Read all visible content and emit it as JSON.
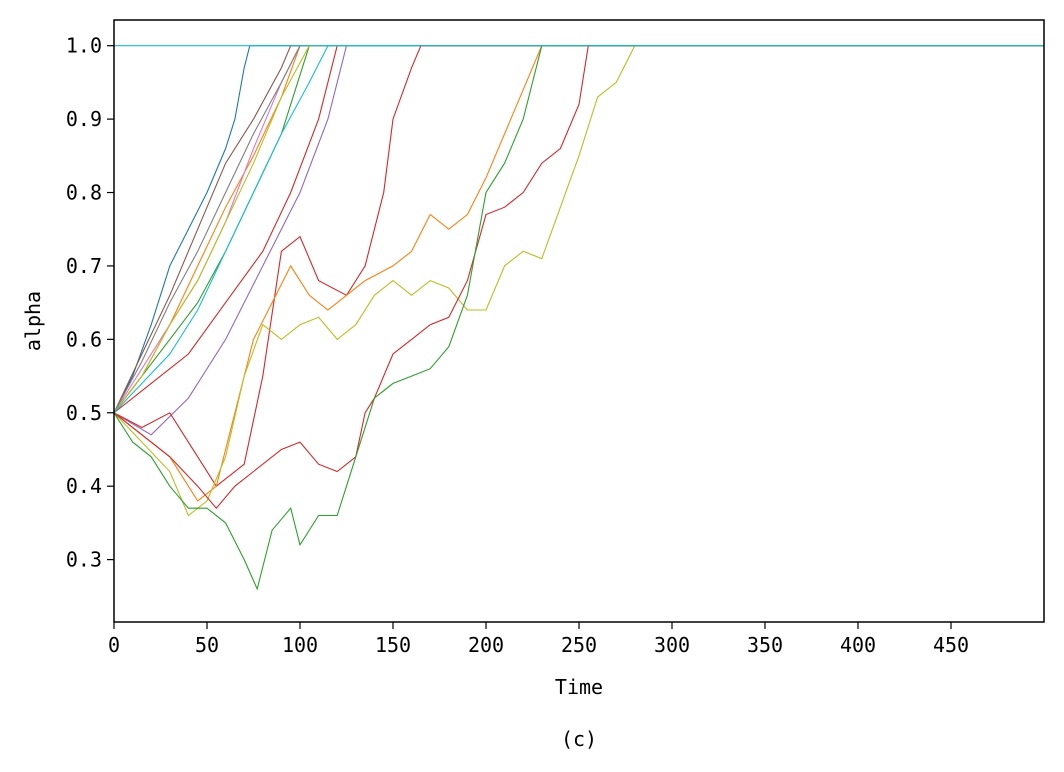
{
  "chart_data": {
    "type": "line",
    "title": "",
    "xlabel": "Time",
    "ylabel": "alpha",
    "caption": "(c)",
    "xlim": [
      0,
      500
    ],
    "ylim": [
      0.215,
      1.035
    ],
    "x_ticks": [
      0,
      50,
      100,
      150,
      200,
      250,
      300,
      350,
      400,
      450
    ],
    "x_tick_labels": [
      "0",
      "50",
      "100",
      "150",
      "200",
      "250",
      "300",
      "350",
      "400",
      "450"
    ],
    "y_ticks": [
      0.3,
      0.4,
      0.5,
      0.6,
      0.7,
      0.8,
      0.9,
      1.0
    ],
    "y_tick_labels": [
      "0.3",
      "0.4",
      "0.5",
      "0.6",
      "0.7",
      "0.8",
      "0.9",
      "1.0"
    ],
    "grid": false,
    "legend": "none",
    "series": [
      {
        "color": "#1f77b4",
        "points": [
          [
            0,
            0.5
          ],
          [
            10,
            0.55
          ],
          [
            20,
            0.62
          ],
          [
            30,
            0.7
          ],
          [
            40,
            0.75
          ],
          [
            50,
            0.8
          ],
          [
            60,
            0.86
          ],
          [
            65,
            0.9
          ],
          [
            70,
            0.97
          ],
          [
            73,
            1.0
          ],
          [
            500,
            1.0
          ]
        ]
      },
      {
        "color": "#ff7f0e",
        "points": [
          [
            0,
            0.5
          ],
          [
            15,
            0.55
          ],
          [
            30,
            0.62
          ],
          [
            45,
            0.7
          ],
          [
            60,
            0.78
          ],
          [
            75,
            0.85
          ],
          [
            90,
            0.93
          ],
          [
            100,
            1.0
          ],
          [
            500,
            1.0
          ]
        ]
      },
      {
        "color": "#2ca02c",
        "points": [
          [
            0,
            0.5
          ],
          [
            15,
            0.55
          ],
          [
            30,
            0.6
          ],
          [
            45,
            0.65
          ],
          [
            60,
            0.72
          ],
          [
            75,
            0.8
          ],
          [
            90,
            0.88
          ],
          [
            105,
            1.0
          ],
          [
            500,
            1.0
          ]
        ]
      },
      {
        "color": "#d62728",
        "points": [
          [
            0,
            0.5
          ],
          [
            20,
            0.54
          ],
          [
            40,
            0.58
          ],
          [
            60,
            0.65
          ],
          [
            80,
            0.72
          ],
          [
            95,
            0.8
          ],
          [
            110,
            0.9
          ],
          [
            120,
            1.0
          ],
          [
            500,
            1.0
          ]
        ]
      },
      {
        "color": "#9467bd",
        "points": [
          [
            0,
            0.5
          ],
          [
            20,
            0.47
          ],
          [
            40,
            0.52
          ],
          [
            60,
            0.6
          ],
          [
            80,
            0.7
          ],
          [
            100,
            0.8
          ],
          [
            115,
            0.9
          ],
          [
            125,
            1.0
          ],
          [
            500,
            1.0
          ]
        ]
      },
      {
        "color": "#8c564b",
        "points": [
          [
            0,
            0.5
          ],
          [
            15,
            0.58
          ],
          [
            30,
            0.66
          ],
          [
            45,
            0.75
          ],
          [
            60,
            0.84
          ],
          [
            75,
            0.9
          ],
          [
            90,
            0.97
          ],
          [
            95,
            1.0
          ],
          [
            500,
            1.0
          ]
        ]
      },
      {
        "color": "#e377c2",
        "points": [
          [
            0,
            0.5
          ],
          [
            15,
            0.56
          ],
          [
            30,
            0.62
          ],
          [
            45,
            0.68
          ],
          [
            60,
            0.76
          ],
          [
            75,
            0.86
          ],
          [
            90,
            0.95
          ],
          [
            100,
            1.0
          ],
          [
            500,
            1.0
          ]
        ]
      },
      {
        "color": "#7f7f7f",
        "points": [
          [
            0,
            0.5
          ],
          [
            15,
            0.57
          ],
          [
            30,
            0.65
          ],
          [
            45,
            0.72
          ],
          [
            60,
            0.8
          ],
          [
            75,
            0.88
          ],
          [
            90,
            0.95
          ],
          [
            100,
            1.0
          ],
          [
            500,
            1.0
          ]
        ]
      },
      {
        "color": "#bcbd22",
        "points": [
          [
            0,
            0.5
          ],
          [
            15,
            0.55
          ],
          [
            30,
            0.62
          ],
          [
            45,
            0.68
          ],
          [
            60,
            0.76
          ],
          [
            75,
            0.84
          ],
          [
            90,
            0.93
          ],
          [
            105,
            1.0
          ],
          [
            500,
            1.0
          ]
        ]
      },
      {
        "color": "#17becf",
        "points": [
          [
            0,
            0.5
          ],
          [
            15,
            0.54
          ],
          [
            30,
            0.58
          ],
          [
            45,
            0.64
          ],
          [
            60,
            0.72
          ],
          [
            75,
            0.8
          ],
          [
            90,
            0.88
          ],
          [
            105,
            0.95
          ],
          [
            115,
            1.0
          ],
          [
            500,
            1.0
          ]
        ]
      },
      {
        "color": "#d62728",
        "points": [
          [
            0,
            0.5
          ],
          [
            15,
            0.48
          ],
          [
            30,
            0.5
          ],
          [
            45,
            0.44
          ],
          [
            55,
            0.4
          ],
          [
            70,
            0.43
          ],
          [
            80,
            0.55
          ],
          [
            90,
            0.72
          ],
          [
            100,
            0.74
          ],
          [
            110,
            0.68
          ],
          [
            125,
            0.66
          ],
          [
            135,
            0.7
          ],
          [
            145,
            0.8
          ],
          [
            150,
            0.9
          ],
          [
            160,
            0.97
          ],
          [
            165,
            1.0
          ],
          [
            500,
            1.0
          ]
        ]
      },
      {
        "color": "#ff7f0e",
        "points": [
          [
            0,
            0.5
          ],
          [
            15,
            0.47
          ],
          [
            30,
            0.44
          ],
          [
            45,
            0.38
          ],
          [
            55,
            0.4
          ],
          [
            65,
            0.5
          ],
          [
            75,
            0.6
          ],
          [
            85,
            0.65
          ],
          [
            95,
            0.7
          ],
          [
            105,
            0.66
          ],
          [
            115,
            0.64
          ],
          [
            125,
            0.66
          ],
          [
            135,
            0.68
          ],
          [
            150,
            0.7
          ],
          [
            160,
            0.72
          ],
          [
            170,
            0.77
          ],
          [
            180,
            0.75
          ],
          [
            190,
            0.77
          ],
          [
            200,
            0.82
          ],
          [
            210,
            0.88
          ],
          [
            220,
            0.94
          ],
          [
            230,
            1.0
          ],
          [
            500,
            1.0
          ]
        ]
      },
      {
        "color": "#bcbd22",
        "points": [
          [
            0,
            0.5
          ],
          [
            15,
            0.46
          ],
          [
            30,
            0.42
          ],
          [
            40,
            0.36
          ],
          [
            50,
            0.38
          ],
          [
            60,
            0.44
          ],
          [
            70,
            0.55
          ],
          [
            80,
            0.62
          ],
          [
            90,
            0.6
          ],
          [
            100,
            0.62
          ],
          [
            110,
            0.63
          ],
          [
            120,
            0.6
          ],
          [
            130,
            0.62
          ],
          [
            140,
            0.66
          ],
          [
            150,
            0.68
          ],
          [
            160,
            0.66
          ],
          [
            170,
            0.68
          ],
          [
            180,
            0.67
          ],
          [
            190,
            0.64
          ],
          [
            200,
            0.64
          ],
          [
            210,
            0.7
          ],
          [
            220,
            0.72
          ],
          [
            230,
            0.71
          ],
          [
            240,
            0.78
          ],
          [
            250,
            0.85
          ],
          [
            260,
            0.93
          ],
          [
            270,
            0.95
          ],
          [
            280,
            1.0
          ],
          [
            500,
            1.0
          ]
        ]
      },
      {
        "color": "#d62728",
        "points": [
          [
            0,
            0.5
          ],
          [
            15,
            0.47
          ],
          [
            30,
            0.44
          ],
          [
            45,
            0.4
          ],
          [
            55,
            0.37
          ],
          [
            65,
            0.4
          ],
          [
            75,
            0.42
          ],
          [
            90,
            0.45
          ],
          [
            100,
            0.46
          ],
          [
            110,
            0.43
          ],
          [
            120,
            0.42
          ],
          [
            130,
            0.44
          ],
          [
            135,
            0.5
          ],
          [
            140,
            0.52
          ],
          [
            150,
            0.58
          ],
          [
            160,
            0.6
          ],
          [
            170,
            0.62
          ],
          [
            180,
            0.63
          ],
          [
            190,
            0.68
          ],
          [
            200,
            0.77
          ],
          [
            210,
            0.78
          ],
          [
            220,
            0.8
          ],
          [
            230,
            0.84
          ],
          [
            240,
            0.86
          ],
          [
            250,
            0.92
          ],
          [
            255,
            1.0
          ],
          [
            500,
            1.0
          ]
        ]
      },
      {
        "color": "#2ca02c",
        "points": [
          [
            0,
            0.5
          ],
          [
            10,
            0.46
          ],
          [
            20,
            0.44
          ],
          [
            30,
            0.4
          ],
          [
            40,
            0.37
          ],
          [
            50,
            0.37
          ],
          [
            60,
            0.35
          ],
          [
            70,
            0.3
          ],
          [
            77,
            0.26
          ],
          [
            85,
            0.34
          ],
          [
            95,
            0.37
          ],
          [
            100,
            0.32
          ],
          [
            110,
            0.36
          ],
          [
            120,
            0.36
          ],
          [
            130,
            0.44
          ],
          [
            140,
            0.52
          ],
          [
            150,
            0.54
          ],
          [
            160,
            0.55
          ],
          [
            170,
            0.56
          ],
          [
            180,
            0.59
          ],
          [
            190,
            0.66
          ],
          [
            200,
            0.8
          ],
          [
            210,
            0.84
          ],
          [
            220,
            0.9
          ],
          [
            225,
            0.95
          ],
          [
            230,
            1.0
          ],
          [
            500,
            1.0
          ]
        ]
      },
      {
        "color": "#17becf",
        "points": [
          [
            0,
            1.0
          ],
          [
            500,
            1.0
          ]
        ]
      }
    ]
  }
}
